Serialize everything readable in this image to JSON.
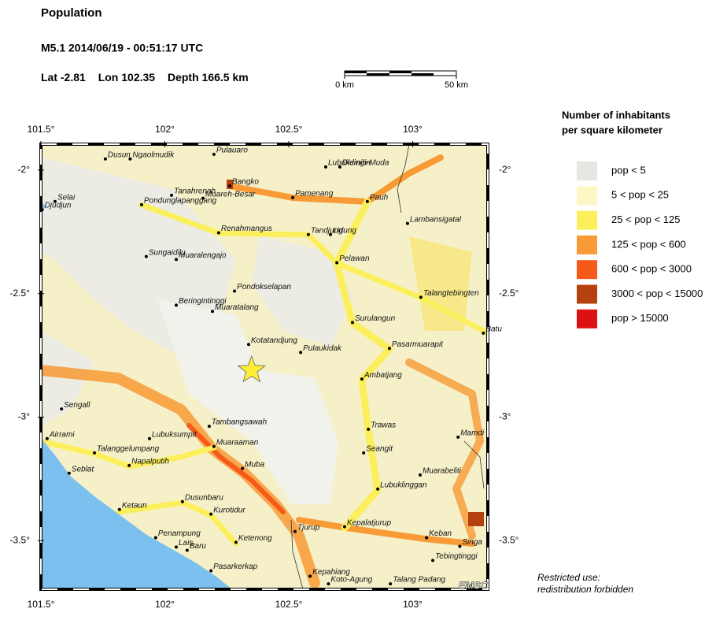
{
  "header": {
    "title": "Population",
    "event": "M5.1  2014/06/19 - 00:51:17 UTC",
    "location": [
      {
        "label": "Lat",
        "value": -2.81
      },
      {
        "label": "Lon",
        "value": 102.35
      },
      {
        "label": "Depth",
        "value": 166.5,
        "unit": "km"
      }
    ],
    "scale": {
      "start": "0 km",
      "end": "50 km"
    }
  },
  "map": {
    "xlim": [
      101.5,
      103.303
    ],
    "ylim": [
      -3.697,
      -1.895
    ],
    "xticks": [
      {
        "value": 101.5,
        "label": "101.5°"
      },
      {
        "value": 102,
        "label": "102°"
      },
      {
        "value": 102.5,
        "label": "102.5°"
      },
      {
        "value": 103,
        "label": "103°"
      }
    ],
    "yticks": [
      {
        "value": -2,
        "label": "-2°"
      },
      {
        "value": -2.5,
        "label": "-2.5°"
      },
      {
        "value": -3,
        "label": "-3°"
      },
      {
        "value": -3.5,
        "label": "-3.5°"
      }
    ],
    "epicenter_color": "#ffee33",
    "logo": "EMSC",
    "places": [
      {
        "name": "Dusun",
        "lon": 101.76,
        "lat": -1.955
      },
      {
        "name": "Ngaolmudik",
        "lon": 101.86,
        "lat": -1.955
      },
      {
        "name": "Pulauaro",
        "lon": 102.198,
        "lat": -1.936
      },
      {
        "name": "Lubukdingin",
        "lon": 102.649,
        "lat": -1.987
      },
      {
        "name": "Dlemih-Muda",
        "lon": 102.706,
        "lat": -1.987
      },
      {
        "name": "Selai",
        "lon": 101.557,
        "lat": -2.127
      },
      {
        "name": "Djudjun",
        "lon": 101.505,
        "lat": -2.16
      },
      {
        "name": "Tanahrenah",
        "lon": 102.027,
        "lat": -2.102
      },
      {
        "name": "Pondunglapanggang",
        "lon": 101.906,
        "lat": -2.14
      },
      {
        "name": "Muareh-Besar",
        "lon": 102.154,
        "lat": -2.114
      },
      {
        "name": "Bangko",
        "lon": 102.262,
        "lat": -2.064
      },
      {
        "name": "Pamenang",
        "lon": 102.516,
        "lat": -2.111
      },
      {
        "name": "Pauh",
        "lon": 102.817,
        "lat": -2.127
      },
      {
        "name": "Lambansigatal",
        "lon": 102.979,
        "lat": -2.216
      },
      {
        "name": "Renahmangus",
        "lon": 102.217,
        "lat": -2.254
      },
      {
        "name": "Tandjung",
        "lon": 102.579,
        "lat": -2.261
      },
      {
        "name": "Lidung",
        "lon": 102.668,
        "lat": -2.261
      },
      {
        "name": "Sungaidilu",
        "lon": 101.925,
        "lat": -2.35
      },
      {
        "name": "Muaralengajo",
        "lon": 102.046,
        "lat": -2.362
      },
      {
        "name": "Pelawan",
        "lon": 102.694,
        "lat": -2.375
      },
      {
        "name": "Pondokselapan",
        "lon": 102.281,
        "lat": -2.49
      },
      {
        "name": "Talangtebingten",
        "lon": 103.033,
        "lat": -2.515
      },
      {
        "name": "Beringintinggi",
        "lon": 102.046,
        "lat": -2.547
      },
      {
        "name": "Muaratalang",
        "lon": 102.192,
        "lat": -2.572
      },
      {
        "name": "Surulangun",
        "lon": 102.757,
        "lat": -2.617
      },
      {
        "name": "Batu",
        "lon": 103.285,
        "lat": -2.66
      },
      {
        "name": "Kotatandjung",
        "lon": 102.338,
        "lat": -2.706
      },
      {
        "name": "Pulaukidak",
        "lon": 102.548,
        "lat": -2.738
      },
      {
        "name": "Pasarmuarapit",
        "lon": 102.906,
        "lat": -2.722
      },
      {
        "name": "Ambatjang",
        "lon": 102.795,
        "lat": -2.846
      },
      {
        "name": "Sengall",
        "lon": 101.583,
        "lat": -2.967
      },
      {
        "name": "Tambangsawah",
        "lon": 102.179,
        "lat": -3.037
      },
      {
        "name": "Trawas",
        "lon": 102.821,
        "lat": -3.049
      },
      {
        "name": "Airrami",
        "lon": 101.525,
        "lat": -3.087
      },
      {
        "name": "Lubuksumpit",
        "lon": 101.938,
        "lat": -3.087
      },
      {
        "name": "Muaraaman",
        "lon": 102.198,
        "lat": -3.119
      },
      {
        "name": "Mamdi",
        "lon": 103.183,
        "lat": -3.081
      },
      {
        "name": "Talanggelumpang",
        "lon": 101.716,
        "lat": -3.145
      },
      {
        "name": "Seangit",
        "lon": 102.802,
        "lat": -3.145
      },
      {
        "name": "Napalputih",
        "lon": 101.856,
        "lat": -3.196
      },
      {
        "name": "Muba",
        "lon": 102.313,
        "lat": -3.208
      },
      {
        "name": "Seblat",
        "lon": 101.614,
        "lat": -3.227
      },
      {
        "name": "Muarabeliti",
        "lon": 103.03,
        "lat": -3.234
      },
      {
        "name": "Lubuklinggan",
        "lon": 102.859,
        "lat": -3.291
      },
      {
        "name": "Ketaun",
        "lon": 101.817,
        "lat": -3.374
      },
      {
        "name": "Dusunbaru",
        "lon": 102.071,
        "lat": -3.342
      },
      {
        "name": "Kurotidur",
        "lon": 102.186,
        "lat": -3.393
      },
      {
        "name": "Tjurup",
        "lon": 102.525,
        "lat": -3.463
      },
      {
        "name": "Kepalatjurup",
        "lon": 102.725,
        "lat": -3.444
      },
      {
        "name": "Keban",
        "lon": 103.056,
        "lat": -3.488
      },
      {
        "name": "Singa",
        "lon": 103.19,
        "lat": -3.523
      },
      {
        "name": "Penampung",
        "lon": 101.963,
        "lat": -3.488
      },
      {
        "name": "Lais",
        "lon": 102.046,
        "lat": -3.526
      },
      {
        "name": "Baru",
        "lon": 102.09,
        "lat": -3.539
      },
      {
        "name": "Ketenong",
        "lon": 102.287,
        "lat": -3.507
      },
      {
        "name": "Tebingtinggi",
        "lon": 103.081,
        "lat": -3.58
      },
      {
        "name": "Pasarkerkap",
        "lon": 102.186,
        "lat": -3.622
      },
      {
        "name": "Kepahiang",
        "lon": 102.586,
        "lat": -3.644
      },
      {
        "name": "Koto-Agung",
        "lon": 102.66,
        "lat": -3.675
      },
      {
        "name": "Talang Padang",
        "lon": 102.91,
        "lat": -3.675
      }
    ]
  },
  "legend": {
    "title_lines": [
      "Number of inhabitants",
      "per square kilometer"
    ],
    "items": [
      {
        "label": "pop < 5",
        "color": "#e6e6e3"
      },
      {
        "label": "5 < pop < 25",
        "color": "#fdf7c5"
      },
      {
        "label": "25 < pop < 125",
        "color": "#fbef5c"
      },
      {
        "label": "125 < pop < 600",
        "color": "#f89a35"
      },
      {
        "label": "600 < pop < 3000",
        "color": "#f55a1b"
      },
      {
        "label": "3000 < pop < 15000",
        "color": "#b4410f"
      },
      {
        "label": "pop > 15000",
        "color": "#dd1111"
      }
    ]
  },
  "footer": {
    "lines": [
      "Restricted use:",
      "redistribution forbidden"
    ]
  }
}
